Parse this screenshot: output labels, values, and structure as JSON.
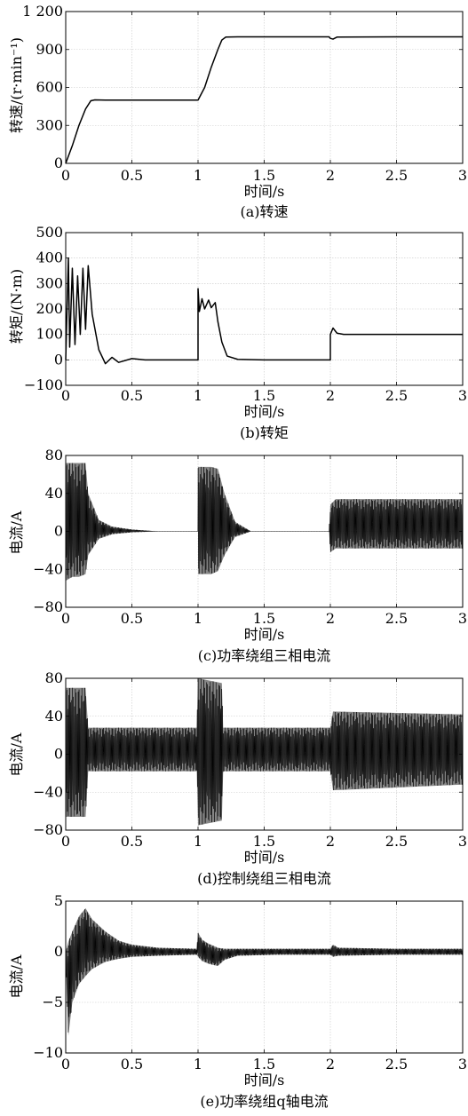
{
  "chart_data": [
    {
      "type": "line",
      "caption": "(a)转速",
      "xlabel": "时间/s",
      "ylabel": "转速/(r·min⁻¹)",
      "xlim": [
        0,
        3
      ],
      "ylim": [
        0,
        1200
      ],
      "xticks": [
        0,
        0.5,
        1,
        1.5,
        2,
        2.5,
        3
      ],
      "xtick_labels": [
        "0",
        "0.5",
        "1",
        "1.5",
        "2",
        "2.5",
        "3"
      ],
      "yticks": [
        0,
        300,
        600,
        900,
        1200
      ],
      "ytick_labels": [
        "0",
        "300",
        "600",
        "900",
        "1 200"
      ],
      "grid": true,
      "series": [
        {
          "x": [
            0,
            0.05,
            0.1,
            0.15,
            0.19,
            0.22,
            0.3,
            0.6,
            1.0,
            1.05,
            1.1,
            1.15,
            1.18,
            1.21,
            1.3,
            1.6,
            1.99,
            2.0,
            2.02,
            2.05,
            2.5,
            3.0
          ],
          "values": [
            0,
            140,
            300,
            430,
            495,
            502,
            500,
            500,
            500,
            600,
            760,
            900,
            975,
            998,
            1000,
            1000,
            1000,
            988,
            982,
            998,
            1000,
            1000
          ]
        }
      ]
    },
    {
      "type": "line",
      "caption": "(b)转矩",
      "xlabel": "时间/s",
      "ylabel": "转矩/(N·m)",
      "xlim": [
        0,
        3
      ],
      "ylim": [
        -100,
        500
      ],
      "xticks": [
        0,
        0.5,
        1,
        1.5,
        2,
        2.5,
        3
      ],
      "xtick_labels": [
        "0",
        "0.5",
        "1",
        "1.5",
        "2",
        "2.5",
        "3"
      ],
      "yticks": [
        -100,
        0,
        100,
        200,
        300,
        400,
        500
      ],
      "ytick_labels": [
        "−100",
        "0",
        "100",
        "200",
        "300",
        "400",
        "500"
      ],
      "grid": true,
      "series": [
        {
          "x": [
            0,
            0.02,
            0.03,
            0.05,
            0.07,
            0.09,
            0.11,
            0.13,
            0.15,
            0.17,
            0.2,
            0.25,
            0.3,
            0.35,
            0.4,
            0.5,
            0.6,
            0.8,
            1.0,
            1.0,
            1.01,
            1.03,
            1.05,
            1.08,
            1.1,
            1.13,
            1.15,
            1.18,
            1.22,
            1.3,
            1.5,
            2.0,
            2.0,
            2.02,
            2.05,
            2.1,
            2.5,
            3.0
          ],
          "values": [
            0,
            400,
            50,
            360,
            60,
            330,
            100,
            360,
            120,
            370,
            180,
            40,
            -15,
            10,
            -10,
            5,
            0,
            0,
            0,
            280,
            190,
            240,
            200,
            235,
            205,
            225,
            150,
            70,
            15,
            2,
            0,
            0,
            100,
            125,
            105,
            100,
            100,
            100
          ]
        }
      ]
    },
    {
      "type": "line",
      "caption": "(c)功率绕组三相电流",
      "xlabel": "时间/s",
      "ylabel": "电流/A",
      "xlim": [
        0,
        3
      ],
      "ylim": [
        -80,
        80
      ],
      "xticks": [
        0,
        0.5,
        1,
        1.5,
        2,
        2.5,
        3
      ],
      "xtick_labels": [
        "0",
        "0.5",
        "1",
        "1.5",
        "2",
        "2.5",
        "3"
      ],
      "yticks": [
        -80,
        -40,
        0,
        40,
        80
      ],
      "ytick_labels": [
        "−80",
        "−40",
        "0",
        "40",
        "80"
      ],
      "grid": true,
      "series": [
        {
          "x": [
            0,
            0.05,
            0.1,
            0.15,
            0.17,
            0.25,
            0.35,
            0.5,
            0.7,
            1.0,
            1.0,
            1.1,
            1.15,
            1.2,
            1.28,
            1.4,
            1.99,
            2.0,
            2.04,
            2.3,
            3.0
          ],
          "envelope_upper": [
            72,
            72,
            72,
            72,
            40,
            12,
            5,
            2,
            0,
            0,
            68,
            68,
            66,
            40,
            10,
            0,
            0,
            28,
            34,
            34,
            34
          ],
          "envelope_lower": [
            -52,
            -48,
            -48,
            -45,
            -25,
            -8,
            -3,
            -1,
            0,
            0,
            -45,
            -45,
            -42,
            -25,
            -6,
            0,
            0,
            -22,
            -18,
            -18,
            -18
          ]
        }
      ]
    },
    {
      "type": "line",
      "caption": "(d)控制绕组三相电流",
      "xlabel": "时间/s",
      "ylabel": "电流/A",
      "xlim": [
        0,
        3
      ],
      "ylim": [
        -80,
        80
      ],
      "xticks": [
        0,
        0.5,
        1,
        1.5,
        2,
        2.5,
        3
      ],
      "xtick_labels": [
        "0",
        "0.5",
        "1",
        "1.5",
        "2",
        "2.5",
        "3"
      ],
      "yticks": [
        -80,
        -40,
        0,
        40,
        80
      ],
      "ytick_labels": [
        "−80",
        "−40",
        "0",
        "40",
        "80"
      ],
      "grid": true,
      "series": [
        {
          "x": [
            0,
            0.15,
            0.17,
            0.99,
            1.0,
            1.18,
            1.19,
            2.0,
            2.02,
            3.0
          ],
          "envelope_upper": [
            70,
            70,
            28,
            28,
            80,
            75,
            28,
            28,
            45,
            42
          ],
          "envelope_lower": [
            -66,
            -66,
            -18,
            -18,
            -75,
            -70,
            -18,
            -18,
            -38,
            -32
          ]
        }
      ]
    },
    {
      "type": "line",
      "caption": "(e)功率绕组q轴电流",
      "xlabel": "时间/s",
      "ylabel": "电流/A",
      "xlim": [
        0,
        3
      ],
      "ylim": [
        -10,
        5
      ],
      "xticks": [
        0,
        0.5,
        1,
        1.5,
        2,
        2.5,
        3
      ],
      "xtick_labels": [
        "0",
        "0.5",
        "1",
        "1.5",
        "2",
        "2.5",
        "3"
      ],
      "yticks": [
        -10,
        -5,
        0,
        5
      ],
      "ytick_labels": [
        "−10",
        "−5",
        "0",
        "5"
      ],
      "grid": true,
      "series": [
        {
          "x": [
            0,
            0.02,
            0.05,
            0.1,
            0.15,
            0.2,
            0.3,
            0.4,
            0.5,
            0.7,
            0.99,
            1.0,
            1.03,
            1.08,
            1.15,
            1.2,
            1.3,
            1.6,
            2.0,
            2.02,
            2.06,
            2.5,
            3.0
          ],
          "envelope_upper": [
            0,
            1.0,
            2.0,
            3.5,
            4.3,
            3.2,
            2.0,
            1.1,
            0.7,
            0.4,
            0.3,
            1.9,
            1.2,
            0.8,
            0.4,
            0.3,
            0.3,
            0.3,
            0.3,
            0.7,
            0.4,
            0.3,
            0.3
          ],
          "envelope_lower": [
            -1,
            -8.3,
            -5.0,
            -3.2,
            -2.4,
            -1.7,
            -1.0,
            -0.7,
            -0.5,
            -0.4,
            -0.3,
            -0.5,
            -0.9,
            -1.2,
            -1.4,
            -0.8,
            -0.4,
            -0.3,
            -0.3,
            -0.5,
            -0.4,
            -0.3,
            -0.3
          ]
        }
      ]
    }
  ]
}
